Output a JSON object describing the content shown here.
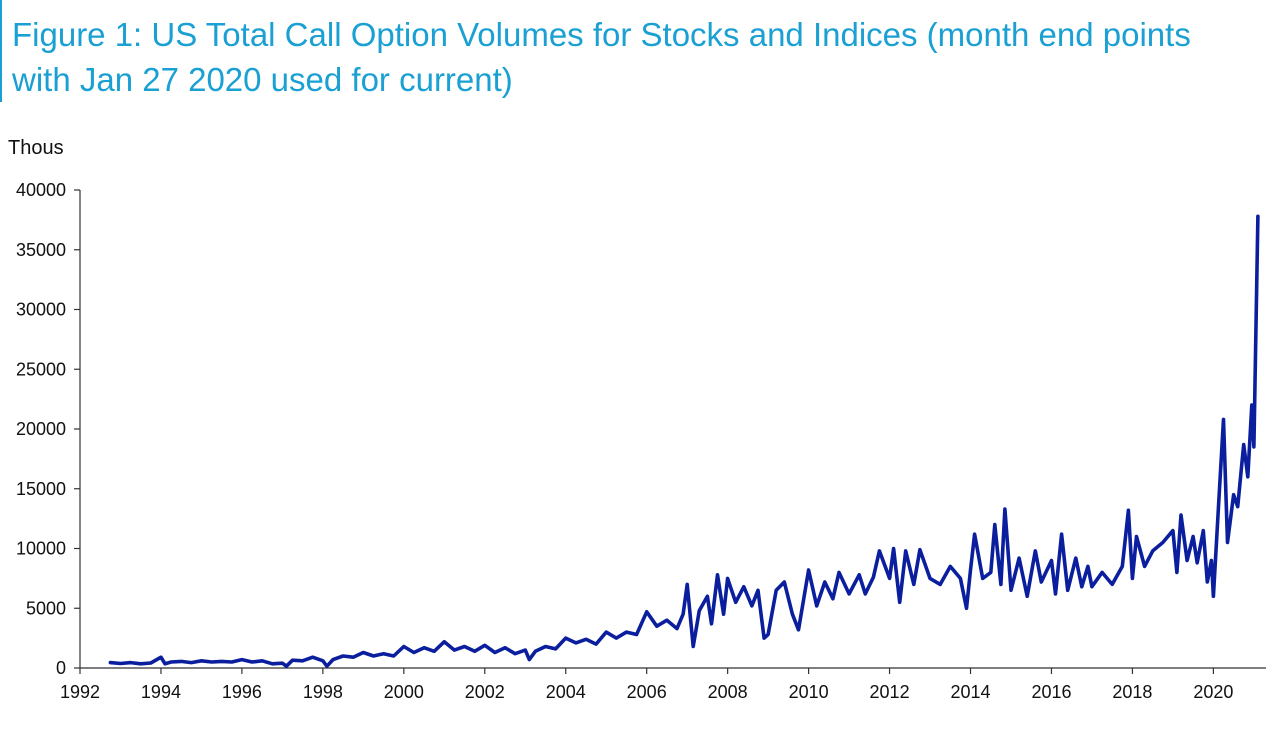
{
  "title": "Figure 1: US Total Call Option Volumes for Stocks and Indices (month end points with Jan 27 2020 used for current)",
  "chart_data": {
    "type": "line",
    "title": "Figure 1: US Total Call Option Volumes for Stocks and Indices (month end points with Jan 27 2020 used for current)",
    "xlabel": "",
    "ylabel": "Thous",
    "xlim": [
      1992,
      2021.3
    ],
    "ylim": [
      0,
      40000
    ],
    "x_ticks": [
      1992,
      1994,
      1996,
      1998,
      2000,
      2002,
      2004,
      2006,
      2008,
      2010,
      2012,
      2014,
      2016,
      2018,
      2020
    ],
    "y_ticks": [
      0,
      5000,
      10000,
      15000,
      20000,
      25000,
      30000,
      35000,
      40000
    ],
    "grid": false,
    "legend": "none",
    "line_color": "#0b1f9e",
    "series": [
      {
        "points": [
          [
            1992.75,
            450
          ],
          [
            1993.0,
            380
          ],
          [
            1993.25,
            450
          ],
          [
            1993.5,
            350
          ],
          [
            1993.75,
            420
          ],
          [
            1994.0,
            900
          ],
          [
            1994.1,
            350
          ],
          [
            1994.25,
            500
          ],
          [
            1994.5,
            550
          ],
          [
            1994.75,
            450
          ],
          [
            1995.0,
            600
          ],
          [
            1995.25,
            500
          ],
          [
            1995.5,
            550
          ],
          [
            1995.75,
            500
          ],
          [
            1996.0,
            700
          ],
          [
            1996.25,
            500
          ],
          [
            1996.5,
            600
          ],
          [
            1996.75,
            350
          ],
          [
            1997.0,
            400
          ],
          [
            1997.1,
            150
          ],
          [
            1997.25,
            650
          ],
          [
            1997.5,
            600
          ],
          [
            1997.75,
            900
          ],
          [
            1998.0,
            600
          ],
          [
            1998.1,
            150
          ],
          [
            1998.25,
            700
          ],
          [
            1998.5,
            1000
          ],
          [
            1998.75,
            900
          ],
          [
            1999.0,
            1300
          ],
          [
            1999.25,
            1000
          ],
          [
            1999.5,
            1200
          ],
          [
            1999.75,
            1000
          ],
          [
            2000.0,
            1800
          ],
          [
            2000.25,
            1300
          ],
          [
            2000.5,
            1700
          ],
          [
            2000.75,
            1400
          ],
          [
            2001.0,
            2200
          ],
          [
            2001.25,
            1500
          ],
          [
            2001.5,
            1800
          ],
          [
            2001.75,
            1400
          ],
          [
            2002.0,
            1900
          ],
          [
            2002.25,
            1300
          ],
          [
            2002.5,
            1700
          ],
          [
            2002.75,
            1200
          ],
          [
            2003.0,
            1500
          ],
          [
            2003.1,
            700
          ],
          [
            2003.25,
            1400
          ],
          [
            2003.5,
            1800
          ],
          [
            2003.75,
            1600
          ],
          [
            2004.0,
            2500
          ],
          [
            2004.25,
            2100
          ],
          [
            2004.5,
            2400
          ],
          [
            2004.75,
            2000
          ],
          [
            2005.0,
            3000
          ],
          [
            2005.25,
            2500
          ],
          [
            2005.5,
            3000
          ],
          [
            2005.75,
            2800
          ],
          [
            2006.0,
            4700
          ],
          [
            2006.25,
            3500
          ],
          [
            2006.5,
            4000
          ],
          [
            2006.75,
            3300
          ],
          [
            2006.9,
            4500
          ],
          [
            2007.0,
            7000
          ],
          [
            2007.15,
            1800
          ],
          [
            2007.3,
            4800
          ],
          [
            2007.5,
            6000
          ],
          [
            2007.6,
            3700
          ],
          [
            2007.75,
            7800
          ],
          [
            2007.9,
            4500
          ],
          [
            2008.0,
            7500
          ],
          [
            2008.2,
            5500
          ],
          [
            2008.4,
            6800
          ],
          [
            2008.6,
            5200
          ],
          [
            2008.75,
            6500
          ],
          [
            2008.9,
            2500
          ],
          [
            2009.0,
            2800
          ],
          [
            2009.2,
            6500
          ],
          [
            2009.4,
            7200
          ],
          [
            2009.6,
            4500
          ],
          [
            2009.75,
            3200
          ],
          [
            2010.0,
            8200
          ],
          [
            2010.2,
            5200
          ],
          [
            2010.4,
            7200
          ],
          [
            2010.6,
            5800
          ],
          [
            2010.75,
            8000
          ],
          [
            2011.0,
            6200
          ],
          [
            2011.25,
            7800
          ],
          [
            2011.4,
            6200
          ],
          [
            2011.6,
            7600
          ],
          [
            2011.75,
            9800
          ],
          [
            2012.0,
            7500
          ],
          [
            2012.1,
            10000
          ],
          [
            2012.25,
            5500
          ],
          [
            2012.4,
            9800
          ],
          [
            2012.6,
            7000
          ],
          [
            2012.75,
            9900
          ],
          [
            2013.0,
            7500
          ],
          [
            2013.25,
            7000
          ],
          [
            2013.5,
            8500
          ],
          [
            2013.75,
            7500
          ],
          [
            2013.9,
            5000
          ],
          [
            2014.0,
            8200
          ],
          [
            2014.1,
            11200
          ],
          [
            2014.3,
            7500
          ],
          [
            2014.5,
            8000
          ],
          [
            2014.6,
            12000
          ],
          [
            2014.75,
            7000
          ],
          [
            2014.85,
            13300
          ],
          [
            2015.0,
            6500
          ],
          [
            2015.2,
            9200
          ],
          [
            2015.4,
            6000
          ],
          [
            2015.6,
            9800
          ],
          [
            2015.75,
            7200
          ],
          [
            2016.0,
            9000
          ],
          [
            2016.1,
            6200
          ],
          [
            2016.25,
            11200
          ],
          [
            2016.4,
            6500
          ],
          [
            2016.6,
            9200
          ],
          [
            2016.75,
            6800
          ],
          [
            2016.9,
            8500
          ],
          [
            2017.0,
            6800
          ],
          [
            2017.25,
            8000
          ],
          [
            2017.5,
            7000
          ],
          [
            2017.75,
            8500
          ],
          [
            2017.9,
            13200
          ],
          [
            2018.0,
            7500
          ],
          [
            2018.1,
            11000
          ],
          [
            2018.3,
            8500
          ],
          [
            2018.5,
            9800
          ],
          [
            2018.75,
            10500
          ],
          [
            2019.0,
            11500
          ],
          [
            2019.1,
            8000
          ],
          [
            2019.2,
            12800
          ],
          [
            2019.35,
            9000
          ],
          [
            2019.5,
            11000
          ],
          [
            2019.6,
            8800
          ],
          [
            2019.75,
            11500
          ],
          [
            2019.85,
            7200
          ],
          [
            2019.95,
            9000
          ],
          [
            2020.0,
            6000
          ],
          [
            2020.15,
            15000
          ],
          [
            2020.25,
            20800
          ],
          [
            2020.35,
            10500
          ],
          [
            2020.5,
            14500
          ],
          [
            2020.6,
            13500
          ],
          [
            2020.75,
            18700
          ],
          [
            2020.85,
            16000
          ],
          [
            2020.95,
            22000
          ],
          [
            2021.0,
            18500
          ],
          [
            2021.1,
            37800
          ]
        ]
      }
    ]
  }
}
